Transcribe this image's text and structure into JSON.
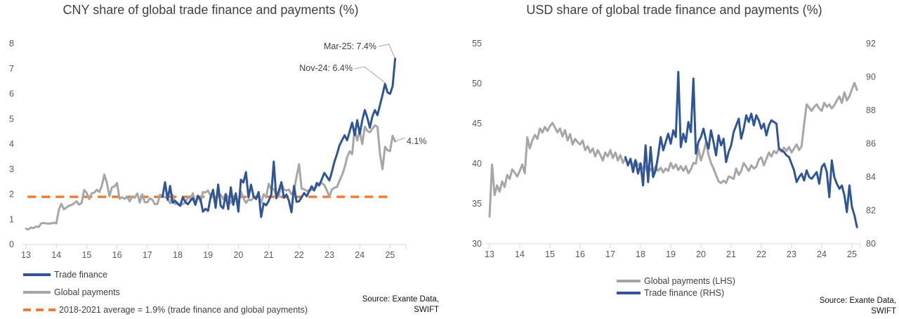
{
  "colors": {
    "trade_finance": "#2F5597",
    "global_payments": "#A6A6A6",
    "average_line": "#ED7D31",
    "axis_line": "#D9D9D9",
    "tick_text": "#595959",
    "title_text": "#404040",
    "leader_line": "#A6A6A6"
  },
  "chart_data": [
    {
      "id": "cny",
      "type": "line",
      "title": "CNY share of global trade finance and payments (%)",
      "x_axis": {
        "min": 13,
        "max": 25.6,
        "ticks": [
          13,
          14,
          15,
          16,
          17,
          18,
          19,
          20,
          21,
          22,
          23,
          24,
          25
        ],
        "label_meaning": "year 2013-2025"
      },
      "y_left": {
        "min": 0,
        "max": 8,
        "ticks": [
          0,
          1,
          2,
          3,
          4,
          5,
          6,
          7,
          8
        ]
      },
      "grid": "off",
      "series": [
        {
          "name": "Global payments",
          "color": "#A6A6A6",
          "axis": "left",
          "x_start": 13.0,
          "x_step_years": 0.083333,
          "values": [
            0.63,
            0.6,
            0.68,
            0.65,
            0.72,
            0.7,
            0.84,
            0.86,
            0.84,
            0.83,
            0.84,
            0.87,
            0.84,
            1.39,
            1.62,
            1.4,
            1.47,
            1.55,
            1.57,
            1.64,
            1.72,
            1.59,
            1.65,
            2.17,
            2.06,
            1.81,
            2.03,
            2.07,
            2.18,
            2.09,
            2.34,
            2.79,
            2.45,
            1.92,
            2.28,
            2.31,
            2.45,
            1.82,
            1.88,
            1.82,
            1.9,
            1.72,
            1.9,
            1.86,
            2.03,
            1.67,
            2.0,
            1.68,
            1.68,
            1.84,
            1.78,
            1.6,
            1.61,
            1.98,
            1.94,
            1.88,
            1.85,
            1.64,
            1.98,
            1.61,
            1.66,
            1.56,
            1.62,
            1.66,
            1.88,
            1.83,
            2.04,
            1.67,
            1.89,
            1.7,
            2.09,
            2.07,
            2.15,
            1.94,
            1.89,
            1.88,
            1.95,
            1.99,
            1.81,
            2.03,
            1.86,
            1.65,
            1.93,
            1.94,
            1.65,
            2.11,
            1.85,
            1.66,
            1.79,
            1.76,
            1.86,
            1.91,
            1.97,
            1.66,
            2.0,
            1.88,
            2.42,
            2.2,
            2.21,
            1.95,
            1.9,
            2.46,
            2.19,
            2.15,
            2.19,
            2.0,
            2.14,
            2.7,
            3.2,
            2.23,
            2.2,
            2.14,
            2.15,
            2.17,
            2.2,
            2.31,
            2.44,
            2.44,
            2.37,
            2.15,
            1.91,
            2.19,
            2.26,
            2.29,
            2.54,
            2.77,
            3.06,
            3.47,
            3.71,
            3.6,
            4.61,
            4.14,
            4.51,
            4.0,
            4.69,
            4.52,
            4.47,
            4.61,
            4.74,
            4.69,
            3.61,
            3.0,
            3.89,
            3.75,
            3.72,
            4.33,
            4.1
          ]
        },
        {
          "name": "Trade finance",
          "color": "#2F5597",
          "axis": "left",
          "x_start": 17.5,
          "x_step_years": 0.083333,
          "values": [
            1.9,
            2.48,
            1.78,
            2.33,
            1.66,
            1.74,
            1.62,
            1.54,
            1.88,
            1.7,
            1.6,
            1.74,
            1.85,
            1.58,
            1.94,
            1.8,
            1.31,
            1.42,
            1.34,
            1.88,
            2.18,
            1.46,
            2.39,
            1.54,
            1.44,
            1.99,
            1.41,
            2.28,
            1.58,
            2.04,
            1.31,
            2.58,
            2.47,
            2.88,
            1.88,
            2.38,
            1.92,
            1.81,
            2.09,
            1.1,
            1.64,
            1.56,
            1.74,
            1.98,
            3.3,
            1.84,
            2.14,
            2.48,
            1.86,
            1.99,
            1.74,
            1.28,
            2.33,
            1.7,
            1.72,
            1.88,
            2.05,
            1.92,
            2.12,
            2.32,
            2.15,
            2.45,
            2.35,
            2.6,
            2.85,
            2.7,
            2.55,
            2.9,
            3.3,
            3.6,
            3.95,
            4.15,
            4.35,
            4.15,
            4.5,
            4.85,
            4.35,
            4.95,
            4.4,
            4.95,
            5.35,
            5.05,
            4.65,
            5.1,
            5.35,
            5.15,
            5.55,
            5.95,
            6.4,
            6.05,
            6.0,
            6.3,
            7.4
          ]
        }
      ],
      "ref_line": {
        "label": "2018-2021 average = 1.9% (trade finance and global payments)",
        "value": 1.9,
        "color": "#ED7D31",
        "x_start": 13.05,
        "x_end": 25.0
      },
      "annotations": [
        {
          "text": "Mar-25: 7.4%",
          "x": 25.17,
          "value": 7.4
        },
        {
          "text": "Nov-24: 6.4%",
          "x": 24.87,
          "value": 6.4
        },
        {
          "text": "4.1%",
          "x": 25.17,
          "value": 4.1
        }
      ],
      "legend": [
        {
          "label": "Trade finance",
          "color": "#2F5597",
          "style": "solid"
        },
        {
          "label": "Global payments",
          "color": "#A6A6A6",
          "style": "solid"
        },
        {
          "label": "2018-2021 average = 1.9% (trade finance and global payments)",
          "color": "#ED7D31",
          "style": "dashed"
        }
      ],
      "source": [
        "Source: Exante Data,",
        "SWIFT"
      ]
    },
    {
      "id": "usd",
      "type": "line",
      "title": "USD share of global trade finance and payments (%)",
      "x_axis": {
        "min": 13,
        "max": 25.6,
        "ticks": [
          13,
          14,
          15,
          16,
          17,
          18,
          19,
          20,
          21,
          22,
          23,
          24,
          25
        ],
        "label_meaning": "year 2013-2025"
      },
      "y_left": {
        "min": 30,
        "max": 55,
        "ticks": [
          30,
          35,
          40,
          45,
          50,
          55
        ]
      },
      "y_right": {
        "min": 80,
        "max": 92,
        "ticks": [
          80,
          82,
          84,
          86,
          88,
          90,
          92
        ]
      },
      "grid": "off",
      "series": [
        {
          "name": "Global payments (LHS)",
          "color": "#A6A6A6",
          "axis": "left",
          "x_start": 13.0,
          "x_step_years": 0.083333,
          "values": [
            33.4,
            39.9,
            36.1,
            37.3,
            36.5,
            37.8,
            37.1,
            38.6,
            38.1,
            39.3,
            38.9,
            38.4,
            39.1,
            39.9,
            38.8,
            43.3,
            41.9,
            42.9,
            43.6,
            43.1,
            44.4,
            43.9,
            44.6,
            44.1,
            44.7,
            45.1,
            44.5,
            43.9,
            44.4,
            43.4,
            44.2,
            42.9,
            43.7,
            42.4,
            43.1,
            42.7,
            42.4,
            42.9,
            41.7,
            42.2,
            41.4,
            41.9,
            40.9,
            41.7,
            41.1,
            40.4,
            41.4,
            40.9,
            41.7,
            40.7,
            41.4,
            40.4,
            41.1,
            40.1,
            40.7,
            39.9,
            40.4,
            39.7,
            40.5,
            39.8,
            40.1,
            39.3,
            39.7,
            38.7,
            39.4,
            38.9,
            39.7,
            39.1,
            39.5,
            38.9,
            39.4,
            39.1,
            40.1,
            39.4,
            39.9,
            39.2,
            39.7,
            39.1,
            39.7,
            38.8,
            39.3,
            40.1,
            40.0,
            41.9,
            40.4,
            41.4,
            42.7,
            41.1,
            40.1,
            39.4,
            38.6,
            37.8,
            37.6,
            37.9,
            37.6,
            38.4,
            38.3,
            38.1,
            39.4,
            38.6,
            39.1,
            40.1,
            39.6,
            39.1,
            39.8,
            39.4,
            39.6,
            40.5,
            40.8,
            39.8,
            40.6,
            41.4,
            40.9,
            41.6,
            41.3,
            41.9,
            41.5,
            42.0,
            41.6,
            42.1,
            41.4,
            41.9,
            42.4,
            41.7,
            42.2,
            44.9,
            47.4,
            47.0,
            46.6,
            47.1,
            47.4,
            46.9,
            46.6,
            47.6,
            47.1,
            47.4,
            46.9,
            47.3,
            47.9,
            48.4,
            47.6,
            48.9,
            47.9,
            48.4,
            49.3,
            50.1,
            49.2
          ]
        },
        {
          "name": "Trade finance (RHS)",
          "color": "#2F5597",
          "axis": "right",
          "x_start": 17.5,
          "x_step_years": 0.083333,
          "values": [
            85.2,
            84.7,
            85.1,
            84.3,
            85.0,
            84.2,
            84.8,
            83.5,
            85.9,
            83.7,
            85.8,
            84.0,
            84.4,
            85.3,
            86.4,
            85.6,
            86.1,
            86.6,
            86.0,
            86.8,
            86.4,
            90.3,
            85.8,
            86.6,
            86.1,
            87.3,
            86.7,
            89.9,
            85.4,
            86.1,
            86.4,
            86.9,
            86.2,
            85.7,
            86.8,
            86.1,
            85.3,
            86.5,
            85.9,
            86.3,
            84.9,
            85.5,
            85.9,
            86.7,
            87.1,
            87.5,
            86.3,
            86.9,
            87.7,
            87.3,
            87.8,
            87.1,
            87.7,
            87.4,
            86.9,
            87.2,
            86.5,
            87.1,
            87.4,
            87.3,
            87.2,
            85.7,
            85.6,
            85.5,
            85.3,
            85.2,
            84.8,
            84.4,
            83.7,
            84.0,
            84.2,
            83.8,
            84.4,
            84.0,
            83.9,
            84.1,
            84.3,
            83.6,
            84.6,
            84.8,
            84.3,
            82.8,
            85.0,
            84.0,
            83.6,
            83.3,
            83.5,
            82.9,
            81.9,
            83.5,
            82.2,
            81.7,
            81.0
          ]
        }
      ],
      "annotations": [],
      "legend": [
        {
          "label": "Global payments (LHS)",
          "color": "#A6A6A6",
          "style": "solid"
        },
        {
          "label": "Trade finance (RHS)",
          "color": "#2F5597",
          "style": "solid"
        }
      ],
      "source": [
        "Source: Exante Data,",
        "SWIFT"
      ]
    }
  ]
}
